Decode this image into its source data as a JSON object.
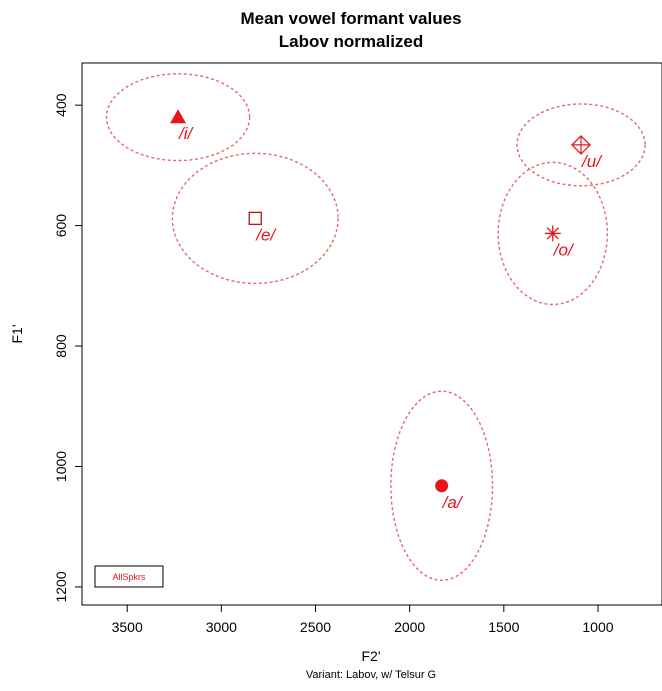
{
  "chart_data": {
    "type": "scatter",
    "title": "Mean vowel formant values",
    "subtitle": "Labov normalized",
    "xlabel": "F2'",
    "ylabel": "F1'",
    "caption": "Variant: Labov, w/ Telsur G",
    "x_reversed": true,
    "y_reversed": true,
    "xlim": [
      3740,
      660
    ],
    "ylim": [
      330,
      1230
    ],
    "x_ticks": [
      3500,
      3000,
      2500,
      2000,
      1500,
      1000
    ],
    "y_ticks": [
      400,
      600,
      800,
      1000,
      1200
    ],
    "color": "#e8141b",
    "ellipse_color": "#e46a6a",
    "legend": {
      "label": "AllSpkrs",
      "position": "bottom-left"
    },
    "points": [
      {
        "label": "/i/",
        "f2": 3230,
        "f1": 420,
        "marker": "filled-triangle",
        "ellipse": {
          "rx_f2": 380,
          "ry_f1": 72
        }
      },
      {
        "label": "/e/",
        "f2": 2820,
        "f1": 588,
        "marker": "open-square",
        "ellipse": {
          "rx_f2": 440,
          "ry_f1": 108
        }
      },
      {
        "label": "/u/",
        "f2": 1090,
        "f1": 466,
        "marker": "diamond-plus",
        "ellipse": {
          "rx_f2": 340,
          "ry_f1": 68
        }
      },
      {
        "label": "/o/",
        "f2": 1240,
        "f1": 613,
        "marker": "asterisk",
        "ellipse": {
          "rx_f2": 290,
          "ry_f1": 118
        }
      },
      {
        "label": "/a/",
        "f2": 1830,
        "f1": 1032,
        "marker": "filled-circle",
        "ellipse": {
          "rx_f2": 270,
          "ry_f1": 157
        }
      }
    ]
  }
}
